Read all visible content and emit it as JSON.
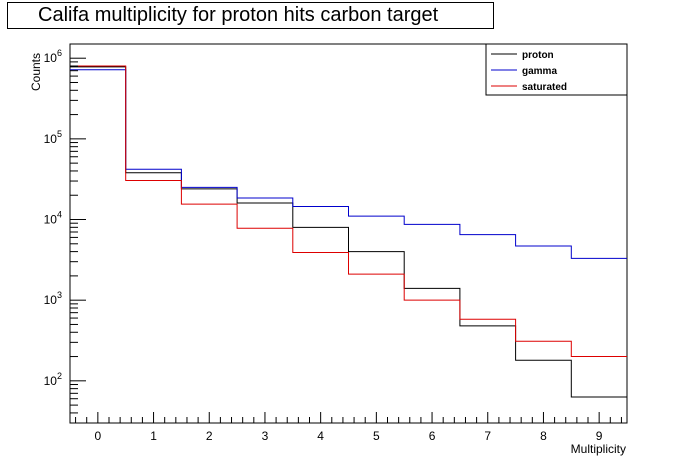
{
  "chart_data": {
    "type": "line",
    "title": "Califa multiplicity for proton hits carbon target",
    "xlabel": "Multiplicity",
    "ylabel": "Counts",
    "xlim": [
      -0.5,
      9.5
    ],
    "ylim": [
      30,
      1500000
    ],
    "yscale": "log",
    "grid": false,
    "legend_position": "top-right",
    "x_ticks": [
      "0",
      "1",
      "2",
      "3",
      "4",
      "5",
      "6",
      "7",
      "8",
      "9"
    ],
    "y_ticks": [
      {
        "base": "10",
        "exp": "2",
        "value": 100
      },
      {
        "base": "10",
        "exp": "3",
        "value": 1000
      },
      {
        "base": "10",
        "exp": "4",
        "value": 10000
      },
      {
        "base": "10",
        "exp": "5",
        "value": 100000
      },
      {
        "base": "10",
        "exp": "6",
        "value": 1000000
      }
    ],
    "x": [
      0,
      1,
      2,
      3,
      4,
      5,
      6,
      7,
      8,
      9
    ],
    "series": [
      {
        "name": "proton",
        "color": "#000000",
        "values": [
          780000,
          38000,
          24000,
          16000,
          8000,
          4000,
          1400,
          480,
          180,
          63
        ]
      },
      {
        "name": "gamma",
        "color": "#0000cc",
        "values": [
          720000,
          42000,
          25000,
          18500,
          14500,
          11000,
          8700,
          6500,
          4700,
          3300
        ]
      },
      {
        "name": "saturated",
        "color": "#dd0000",
        "values": [
          800000,
          30500,
          15500,
          7800,
          3900,
          2100,
          1000,
          580,
          310,
          200
        ]
      }
    ]
  }
}
